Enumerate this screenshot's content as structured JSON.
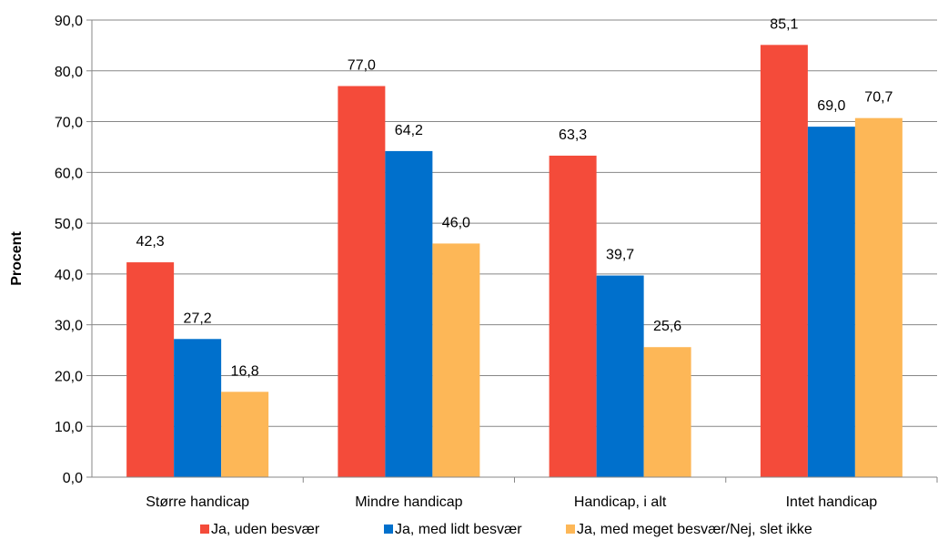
{
  "chart_data": {
    "type": "bar",
    "title": "",
    "xlabel": "",
    "ylabel": "Procent",
    "ylim": [
      0,
      90
    ],
    "ytick_step": 10,
    "ytick_labels": [
      "0,0",
      "10,0",
      "20,0",
      "30,0",
      "40,0",
      "50,0",
      "60,0",
      "70,0",
      "80,0",
      "90,0"
    ],
    "grid": true,
    "legend_position": "bottom",
    "categories": [
      "Større handicap",
      "Mindre handicap",
      "Handicap, i alt",
      "Intet handicap"
    ],
    "series": [
      {
        "name": "Ja, uden besvær",
        "color": "#F44B3A",
        "values": [
          42.3,
          77.0,
          63.3,
          85.1
        ],
        "labels": [
          "42,3",
          "77,0",
          "63,3",
          "85,1"
        ]
      },
      {
        "name": "Ja, med lidt besvær",
        "color": "#0070CC",
        "values": [
          27.2,
          64.2,
          39.7,
          69.0
        ],
        "labels": [
          "27,2",
          "64,2",
          "39,7",
          "69,0"
        ]
      },
      {
        "name": "Ja, med meget besvær/Nej, slet ikke",
        "color": "#FDB757",
        "values": [
          16.8,
          46.0,
          25.6,
          70.7
        ],
        "labels": [
          "16,8",
          "46,0",
          "25,6",
          "70,7"
        ]
      }
    ]
  }
}
